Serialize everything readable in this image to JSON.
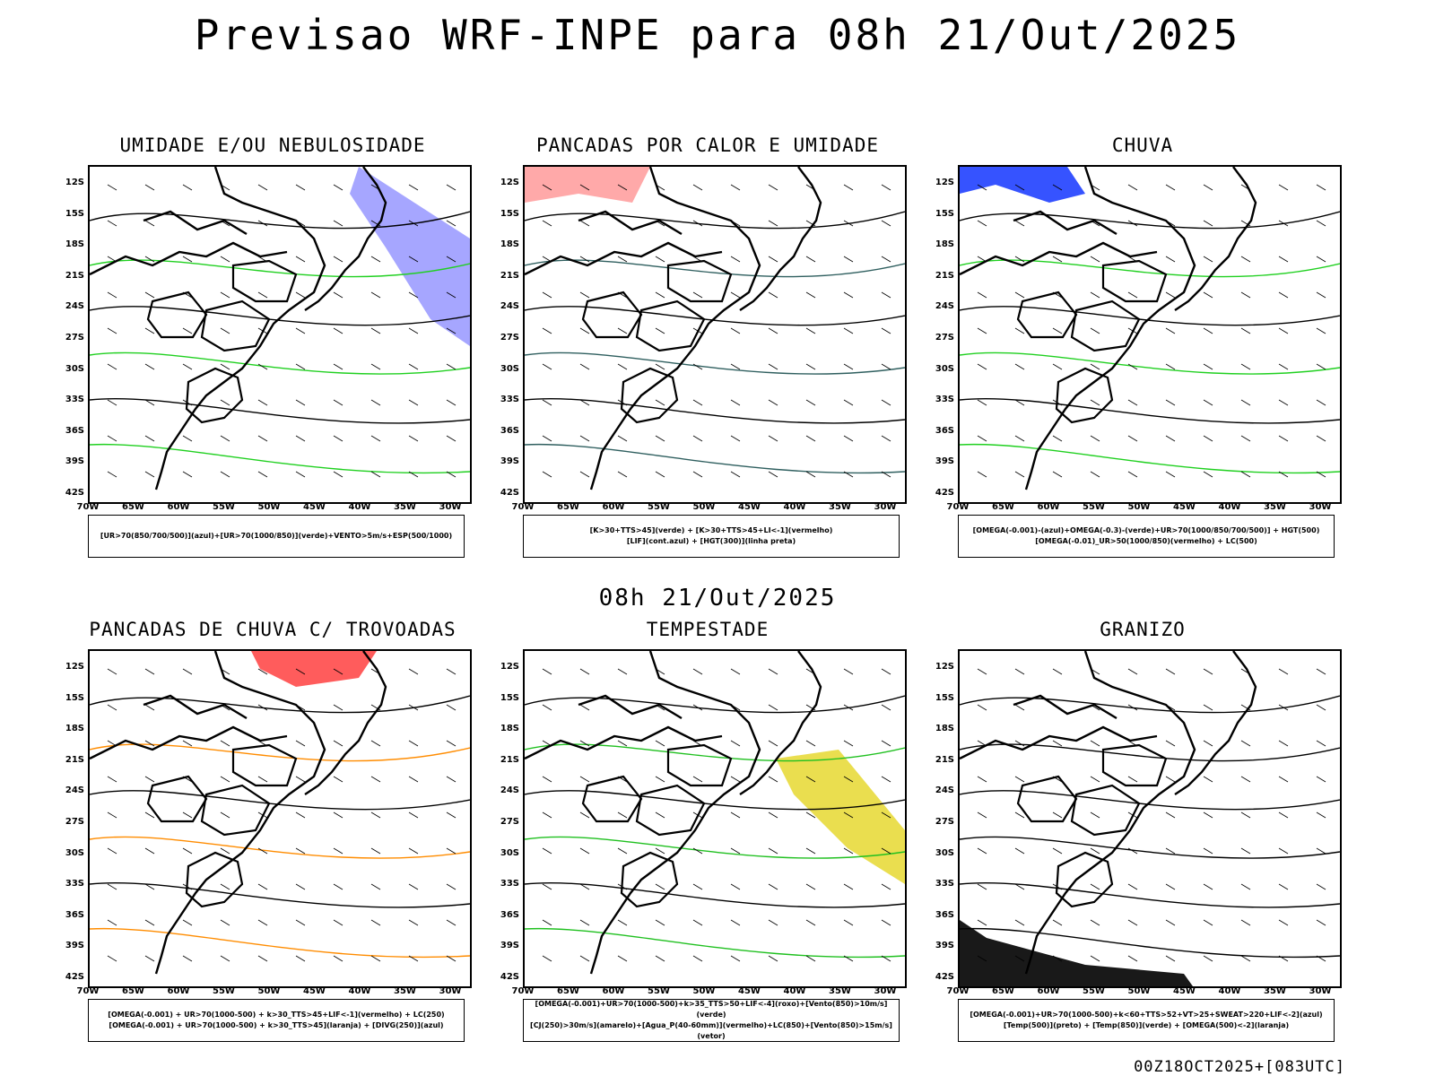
{
  "main_title": "Previsao WRF-INPE  para 08h 21/Out/2025",
  "mid_date": "08h 21/Out/2025",
  "footer": "00Z18OCT2025+[083UTC]",
  "axes": {
    "lat_labels": [
      "12S",
      "15S",
      "18S",
      "21S",
      "24S",
      "27S",
      "30S",
      "33S",
      "36S",
      "39S",
      "42S"
    ],
    "lon_labels": [
      "70W",
      "65W",
      "60W",
      "55W",
      "50W",
      "45W",
      "40W",
      "35W",
      "30W"
    ]
  },
  "panels": [
    {
      "title": "UMIDADE E/OU NEBULOSIDADE",
      "legend": [
        "[UR>70(850/700/500)](azul)+[UR>70(1000/850)](verde)+VENTO>5m/s+ESP(500/1000)"
      ],
      "colors": [
        "#6a6aff",
        "#20d020",
        "#ff4040"
      ]
    },
    {
      "title": "PANCADAS POR CALOR E UMIDADE",
      "legend": [
        "[K>30+TTS>45](verde) + [K>30+TTS>45+LI<-1](vermelho)",
        "[LIF](cont.azul) + [HGT(300)](linha preta)"
      ],
      "colors": [
        "#ff4040",
        "#2f5f5f",
        "#2040ff"
      ]
    },
    {
      "title": "CHUVA",
      "legend": [
        "[OMEGA(-0.001)-(azul)+OMEGA(-0.3)-(verde)+UR>70(1000/850/700/500)] + HGT(500)",
        "[OMEGA(-0.01)_UR>50(1000/850)(vermelho) + LC(500)"
      ],
      "colors": [
        "#2040ff",
        "#20d020",
        "#ff4040"
      ]
    },
    {
      "title": "PANCADAS DE CHUVA C/ TROVOADAS",
      "legend": [
        "[OMEGA(-0.001) + UR>70(1000-500) + k>30_TTS>45+LIF<-1](vermelho) + LC(250)",
        "[OMEGA(-0.001) + UR>70(1000-500) + k>30_TTS>45](laranja) + [DIVG(250)](azul)"
      ],
      "colors": [
        "#ff4040",
        "#ff8c00",
        "#2040ff"
      ]
    },
    {
      "title": "TEMPESTADE",
      "legend": [
        "[OMEGA(-0.001)+UR>70(1000-500)+k>35_TTS>50+LIF<-4](roxo)+[Vento(850)>10m/s](verde)",
        "[CJ(250)>30m/s](amarelo)+[Agua_P(40-60mm)](vermelho)+LC(850)+[Vento(850)>15m/s](vetor)"
      ],
      "colors": [
        "#e6d830",
        "#20c020",
        "#ff4040"
      ]
    },
    {
      "title": "GRANIZO",
      "legend": [
        "[OMEGA(-0.001)+UR>70(1000-500)+k<60+TTS>52+VT>25+SWEAT>220+LIF<-2](azul)",
        "[Temp(500)](preto) + [Temp(850)](verde) + [OMEGA(500)<-2](laranja)"
      ],
      "colors": [
        "#20d020",
        "#000000",
        "#ff8c00"
      ]
    }
  ]
}
